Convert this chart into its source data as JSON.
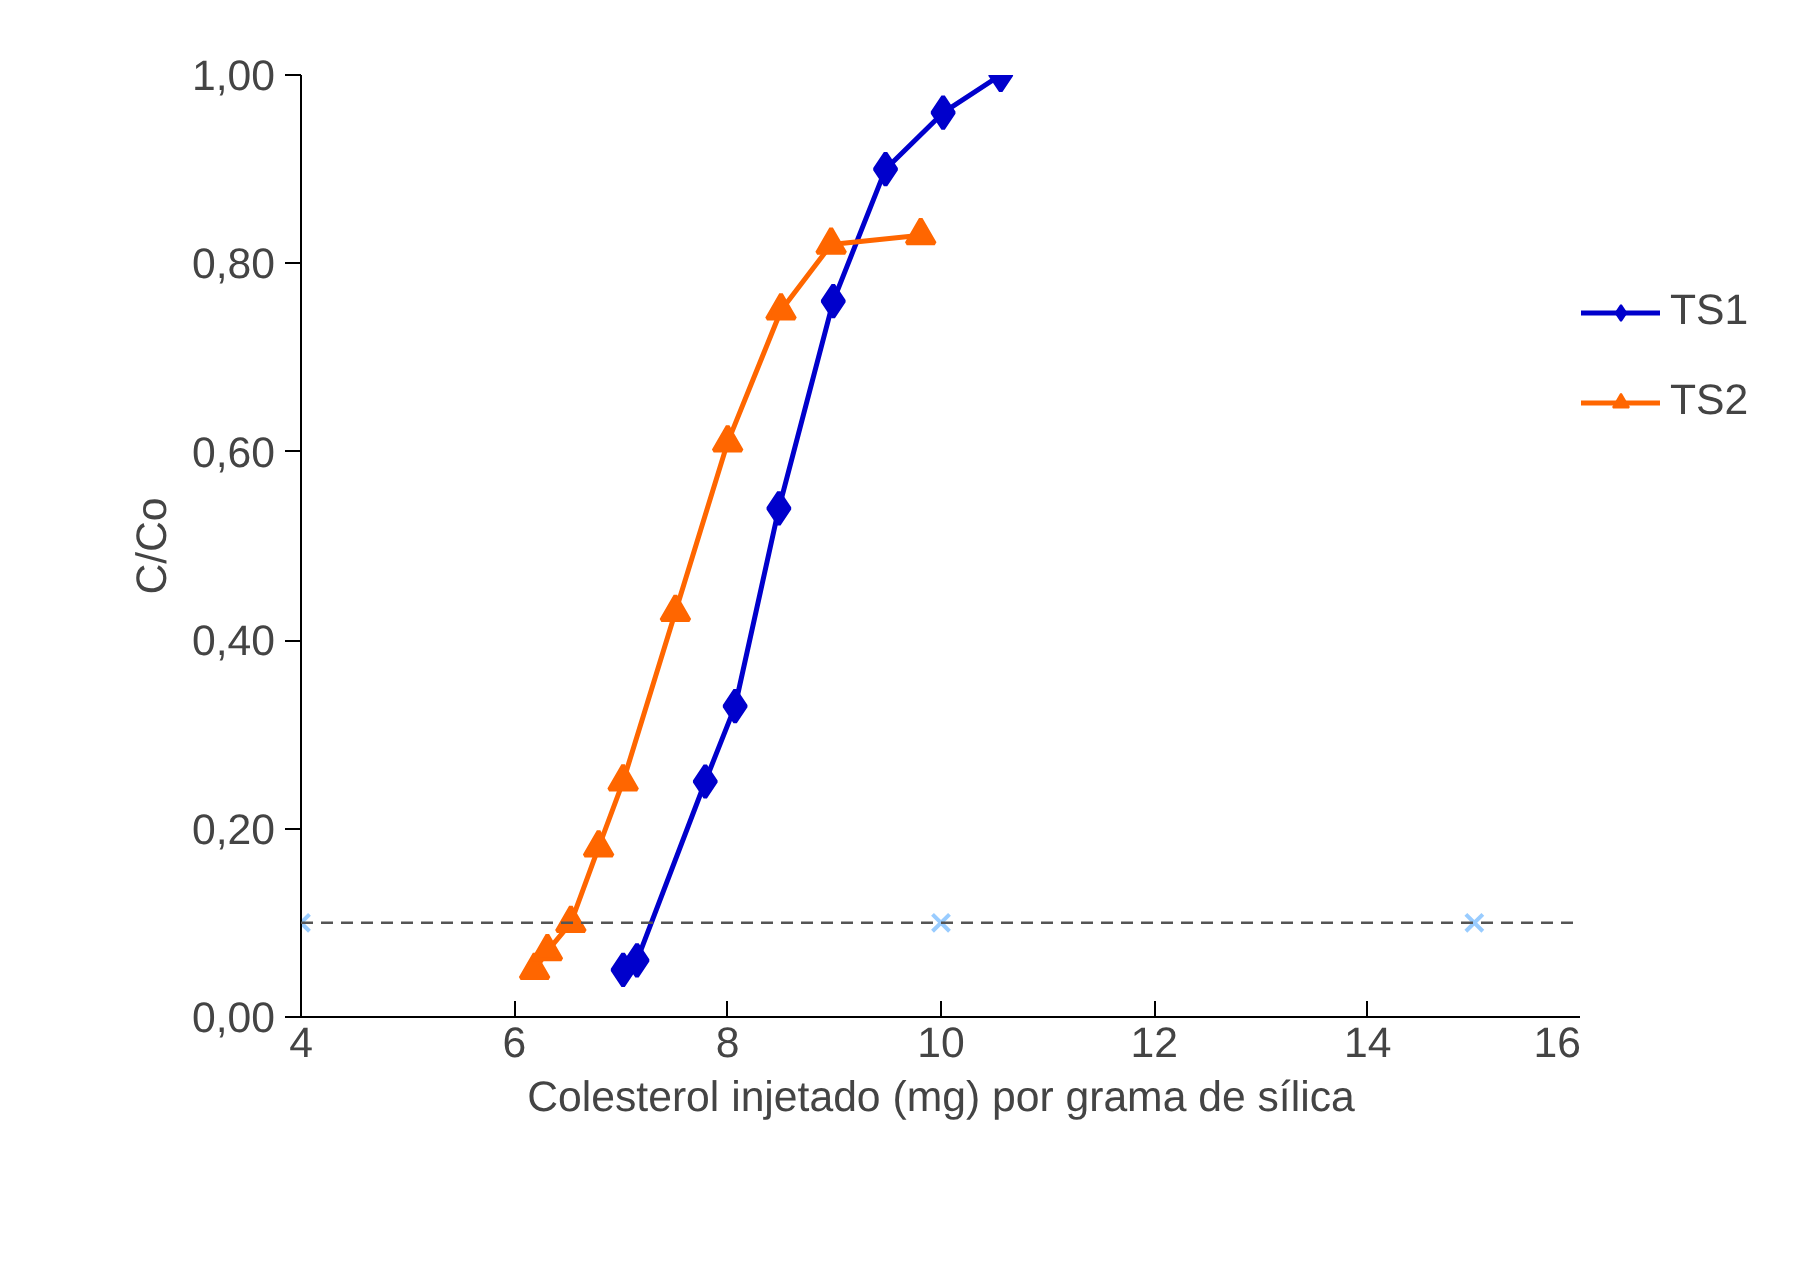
{
  "chart_data": {
    "type": "line",
    "xlabel": "Colesterol injetado (mg) por grama de sílica",
    "ylabel": "C/Co",
    "xlim": [
      4,
      16
    ],
    "xticks": [
      4,
      6,
      8,
      10,
      12,
      14,
      16
    ],
    "ylim": [
      0,
      1
    ],
    "yticks": [
      {
        "value": 0,
        "label": "0,00"
      },
      {
        "value": 0.2,
        "label": "0,20"
      },
      {
        "value": 0.4,
        "label": "0,40"
      },
      {
        "value": 0.6,
        "label": "0,60"
      },
      {
        "value": 0.8,
        "label": "0,80"
      },
      {
        "value": 1,
        "label": "1,00"
      }
    ],
    "grid": false,
    "legend": "right",
    "series": [
      {
        "name": "TS1",
        "color": "#0000cc",
        "marker": "diamond",
        "x": [
          7.02,
          7.15,
          7.79,
          8.07,
          8.48,
          8.99,
          9.48,
          10.02,
          10.56
        ],
        "values": [
          0.05,
          0.06,
          0.25,
          0.33,
          0.54,
          0.76,
          0.9,
          0.96,
          1.0
        ]
      },
      {
        "name": "TS2",
        "color": "#ff6600",
        "marker": "triangle",
        "x": [
          6.19,
          6.31,
          6.53,
          6.79,
          7.02,
          7.51,
          8.0,
          8.5,
          8.97,
          9.81
        ],
        "values": [
          0.05,
          0.07,
          0.1,
          0.18,
          0.25,
          0.43,
          0.61,
          0.75,
          0.82,
          0.83
        ]
      },
      {
        "type": "scatter",
        "color": "#99ccff",
        "marker": "cross",
        "x": [
          4,
          10,
          15
        ],
        "values": [
          0.1,
          0.1,
          0.1
        ]
      }
    ],
    "ref_lines": [
      {
        "axis": "y",
        "value": 0.1,
        "color": "#555555",
        "line_style": "dashed"
      }
    ]
  }
}
